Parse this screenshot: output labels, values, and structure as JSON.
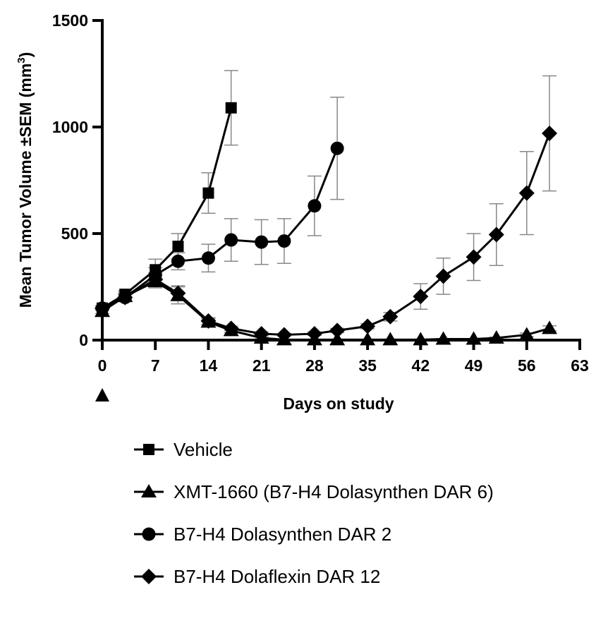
{
  "chart_data": {
    "type": "line",
    "xlabel": "Days on study",
    "ylabel": "Mean Tumor Volume ±SEM (mm",
    "ylabel_sup": "3",
    "ylabel_close": ")",
    "xlim": [
      0,
      63
    ],
    "ylim": [
      0,
      1500
    ],
    "xticks": [
      0,
      7,
      14,
      21,
      28,
      35,
      42,
      49,
      56,
      63
    ],
    "yticks": [
      0,
      500,
      1000,
      1500
    ],
    "grid": false,
    "legend_placement": "bottom",
    "dosing_marker_day": 0,
    "colors": {
      "line": "#000000",
      "error_bar": "#888888"
    },
    "series": [
      {
        "name": "Vehicle",
        "marker": "square",
        "x": [
          0,
          3,
          7,
          10,
          14,
          17
        ],
        "y": [
          150,
          215,
          330,
          440,
          690,
          1090
        ],
        "sem": [
          10,
          15,
          50,
          60,
          95,
          175
        ]
      },
      {
        "name": "XMT-1660 (B7-H4 Dolasynthen DAR 6)",
        "marker": "triangle",
        "x": [
          0,
          3,
          7,
          10,
          14,
          17,
          21,
          24,
          28,
          31,
          35,
          38,
          42,
          45,
          49,
          52,
          56,
          59
        ],
        "y": [
          135,
          205,
          275,
          210,
          85,
          45,
          10,
          2,
          2,
          2,
          2,
          2,
          2,
          5,
          5,
          10,
          25,
          55
        ],
        "sem": [
          10,
          15,
          30,
          40,
          15,
          10,
          5,
          1,
          1,
          1,
          1,
          1,
          1,
          2,
          2,
          4,
          8,
          12
        ]
      },
      {
        "name": "B7-H4  Dolasynthen DAR 2",
        "marker": "circle",
        "x": [
          0,
          3,
          7,
          10,
          14,
          17,
          21,
          24,
          28,
          31
        ],
        "y": [
          150,
          200,
          305,
          370,
          385,
          470,
          460,
          465,
          630,
          900
        ],
        "sem": [
          10,
          15,
          35,
          40,
          65,
          100,
          105,
          105,
          140,
          240
        ]
      },
      {
        "name": "B7-H4  Dolaflexin  DAR 12",
        "marker": "diamond",
        "x": [
          0,
          3,
          7,
          10,
          14,
          17,
          21,
          24,
          28,
          31,
          35,
          38,
          42,
          45,
          49,
          52,
          56,
          59
        ],
        "y": [
          150,
          200,
          285,
          220,
          90,
          55,
          30,
          25,
          30,
          45,
          65,
          110,
          205,
          300,
          390,
          495,
          690,
          970
        ],
        "sem": [
          10,
          15,
          30,
          35,
          15,
          10,
          8,
          6,
          8,
          10,
          12,
          20,
          60,
          85,
          110,
          145,
          195,
          270
        ]
      }
    ]
  }
}
